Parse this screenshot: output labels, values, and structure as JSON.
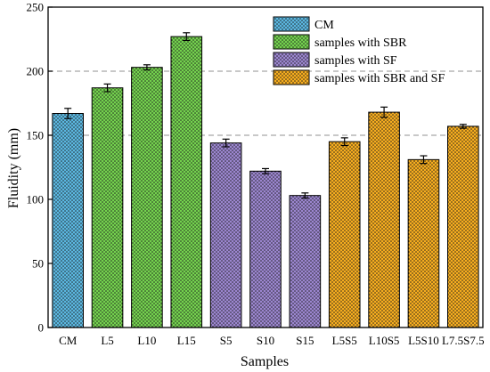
{
  "chart_data": {
    "type": "bar",
    "xlabel": "Samples",
    "ylabel": "Fluidity (mm)",
    "ylim": [
      0,
      250
    ],
    "yticks": [
      0,
      50,
      100,
      150,
      200,
      250
    ],
    "reference_lines": [
      150,
      200
    ],
    "grid": false,
    "legend_position": "top-right",
    "categories": [
      "CM",
      "L5",
      "L10",
      "L15",
      "S5",
      "S10",
      "S15",
      "L5S5",
      "L10S5",
      "L5S10",
      "L7.5S7.5"
    ],
    "values": [
      167,
      187,
      203,
      227,
      144,
      122,
      103,
      145,
      168,
      131,
      157
    ],
    "errors": [
      4,
      3,
      2,
      3,
      3,
      2,
      2,
      3,
      4,
      3,
      1.5
    ],
    "groups": [
      0,
      1,
      1,
      1,
      2,
      2,
      2,
      3,
      3,
      3,
      3
    ],
    "series": [
      {
        "name": "CM",
        "color": "#5bb7e0"
      },
      {
        "name": "samples with SBR",
        "color": "#74d24e"
      },
      {
        "name": "samples with SF",
        "color": "#9b86cf"
      },
      {
        "name": "samples with SBR and SF",
        "color": "#f6ad1f"
      }
    ]
  }
}
